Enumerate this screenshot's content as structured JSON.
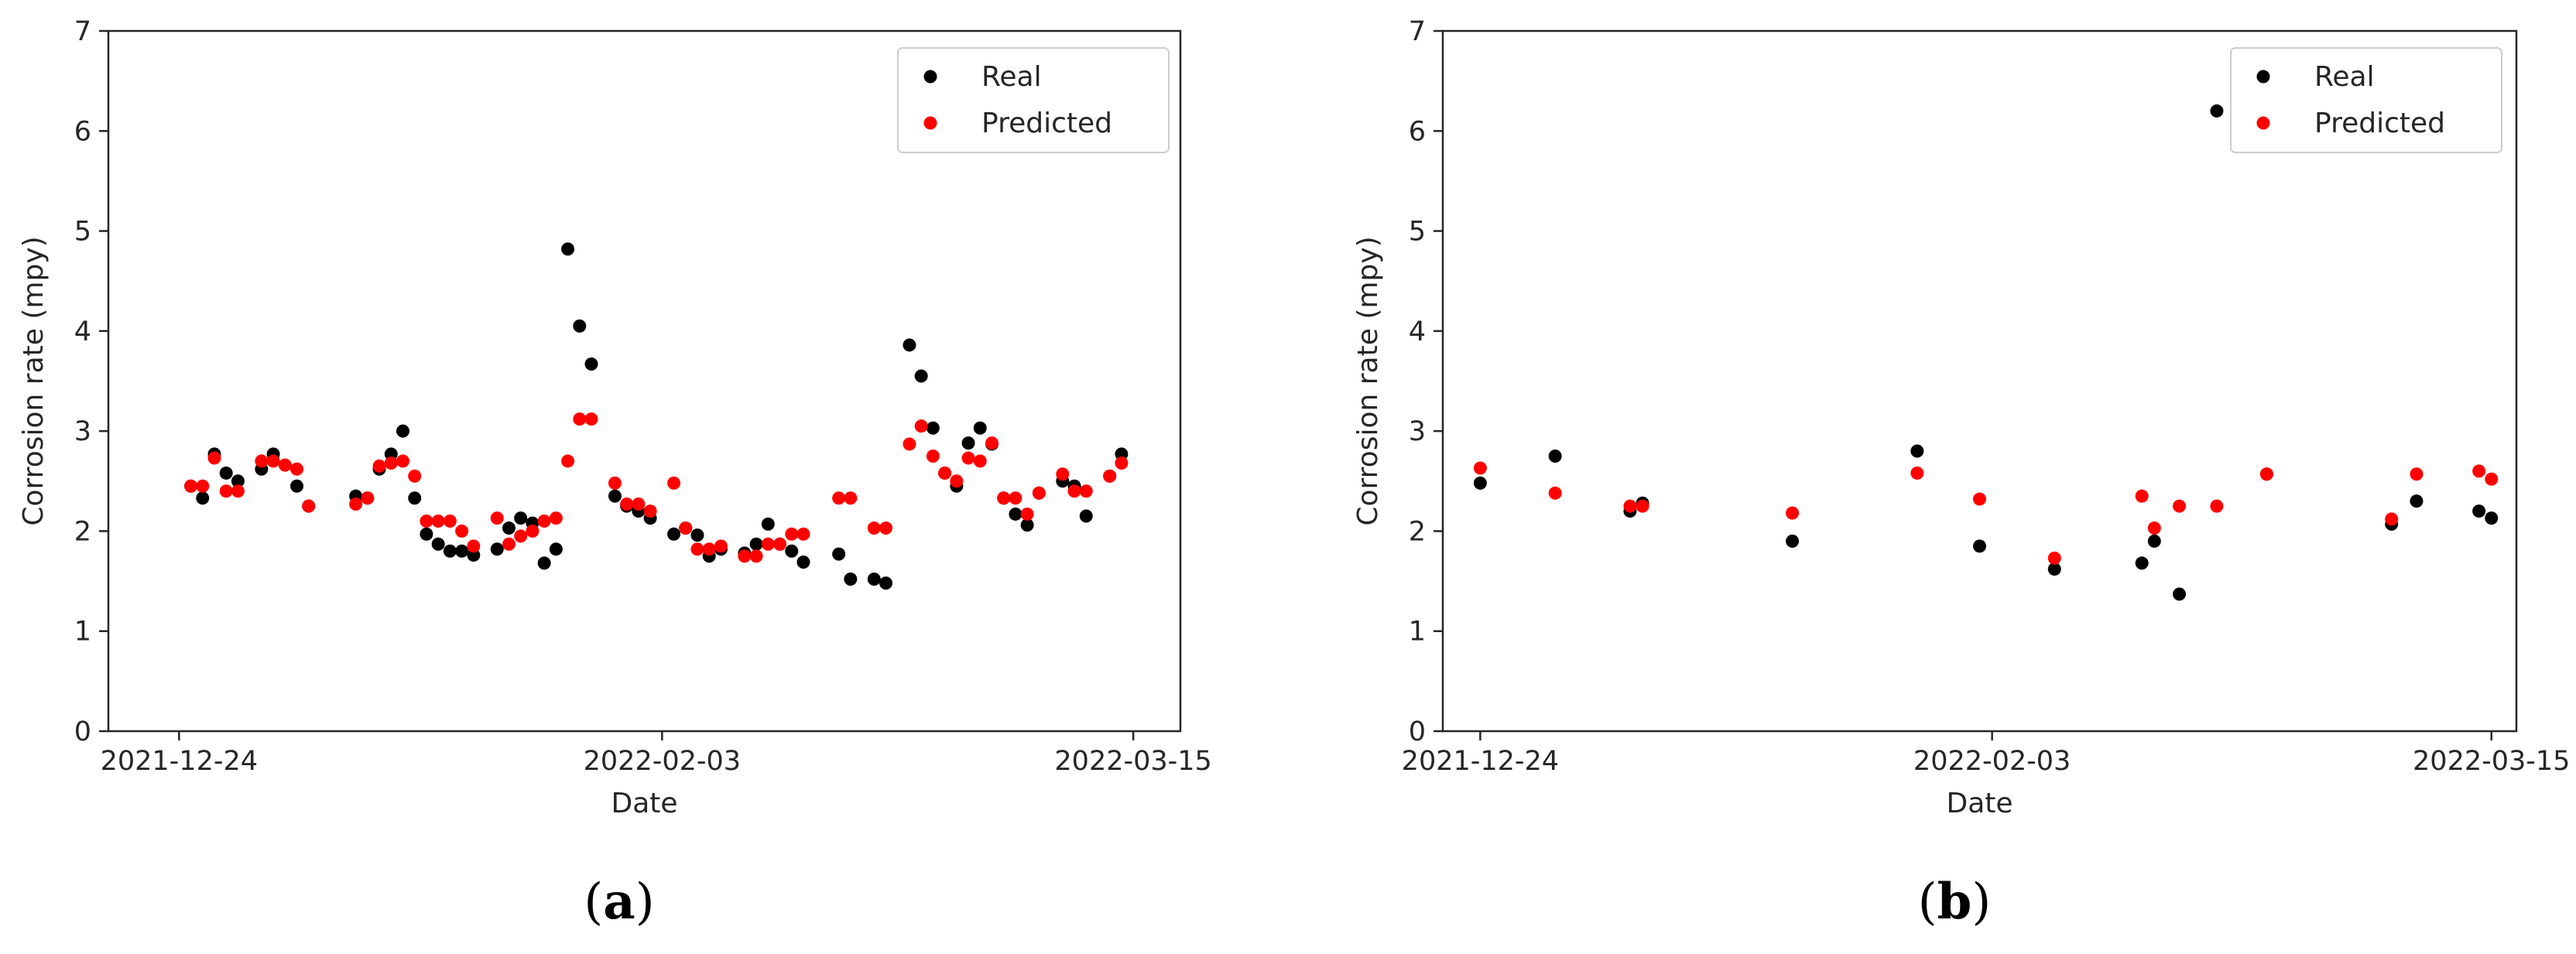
{
  "colors": {
    "real": "#000000",
    "predicted": "#ff0000",
    "axes": "#262626"
  },
  "chart_data": [
    {
      "type": "scatter",
      "panel_label": "(a)",
      "panel_letter": "a",
      "xlabel": "Date",
      "ylabel": "Corrosion rate (mpy)",
      "xlim": [
        "2021-12-18",
        "2022-03-19"
      ],
      "ylim": [
        0,
        7
      ],
      "x_ticks": [
        "2021-12-24",
        "2022-02-03",
        "2022-03-15"
      ],
      "y_ticks": [
        0,
        1,
        2,
        3,
        4,
        5,
        6,
        7
      ],
      "grid": false,
      "legend_position": "top-right",
      "series": [
        {
          "name": "Real",
          "color": "#000000",
          "points": [
            [
              "2021-12-25",
              2.45
            ],
            [
              "2021-12-26",
              2.33
            ],
            [
              "2021-12-27",
              2.77
            ],
            [
              "2021-12-28",
              2.58
            ],
            [
              "2021-12-29",
              2.5
            ],
            [
              "2021-12-31",
              2.62
            ],
            [
              "2022-01-01",
              2.77
            ],
            [
              "2022-01-03",
              2.45
            ],
            [
              "2022-01-04",
              2.25
            ],
            [
              "2022-01-08",
              2.35
            ],
            [
              "2022-01-09",
              2.33
            ],
            [
              "2022-01-10",
              2.62
            ],
            [
              "2022-01-11",
              2.77
            ],
            [
              "2022-01-12",
              3.0
            ],
            [
              "2022-01-13",
              2.33
            ],
            [
              "2022-01-14",
              1.97
            ],
            [
              "2022-01-15",
              1.87
            ],
            [
              "2022-01-16",
              1.8
            ],
            [
              "2022-01-17",
              1.8
            ],
            [
              "2022-01-18",
              1.76
            ],
            [
              "2022-01-20",
              1.82
            ],
            [
              "2022-01-21",
              2.03
            ],
            [
              "2022-01-22",
              2.13
            ],
            [
              "2022-01-23",
              2.08
            ],
            [
              "2022-01-24",
              1.68
            ],
            [
              "2022-01-25",
              1.82
            ],
            [
              "2022-01-26",
              4.82
            ],
            [
              "2022-01-27",
              4.05
            ],
            [
              "2022-01-28",
              3.67
            ],
            [
              "2022-01-30",
              2.35
            ],
            [
              "2022-01-31",
              2.25
            ],
            [
              "2022-02-01",
              2.2
            ],
            [
              "2022-02-02",
              2.13
            ],
            [
              "2022-02-04",
              1.97
            ],
            [
              "2022-02-05",
              2.03
            ],
            [
              "2022-02-06",
              1.96
            ],
            [
              "2022-02-07",
              1.75
            ],
            [
              "2022-02-08",
              1.82
            ],
            [
              "2022-02-10",
              1.78
            ],
            [
              "2022-02-11",
              1.87
            ],
            [
              "2022-02-12",
              2.07
            ],
            [
              "2022-02-13",
              1.87
            ],
            [
              "2022-02-14",
              1.8
            ],
            [
              "2022-02-15",
              1.69
            ],
            [
              "2022-02-18",
              1.77
            ],
            [
              "2022-02-19",
              1.52
            ],
            [
              "2022-02-21",
              1.52
            ],
            [
              "2022-02-22",
              1.48
            ],
            [
              "2022-02-24",
              3.86
            ],
            [
              "2022-02-25",
              3.55
            ],
            [
              "2022-02-26",
              3.03
            ],
            [
              "2022-02-27",
              2.58
            ],
            [
              "2022-02-28",
              2.45
            ],
            [
              "2022-03-01",
              2.88
            ],
            [
              "2022-03-02",
              3.03
            ],
            [
              "2022-03-03",
              2.87
            ],
            [
              "2022-03-04",
              2.33
            ],
            [
              "2022-03-05",
              2.17
            ],
            [
              "2022-03-06",
              2.06
            ],
            [
              "2022-03-07",
              2.38
            ],
            [
              "2022-03-09",
              2.5
            ],
            [
              "2022-03-10",
              2.45
            ],
            [
              "2022-03-11",
              2.15
            ],
            [
              "2022-03-13",
              2.55
            ],
            [
              "2022-03-14",
              2.77
            ]
          ]
        },
        {
          "name": "Predicted",
          "color": "#ff0000",
          "points": [
            [
              "2021-12-25",
              2.45
            ],
            [
              "2021-12-26",
              2.45
            ],
            [
              "2021-12-27",
              2.73
            ],
            [
              "2021-12-28",
              2.4
            ],
            [
              "2021-12-29",
              2.4
            ],
            [
              "2021-12-31",
              2.7
            ],
            [
              "2022-01-01",
              2.7
            ],
            [
              "2022-01-02",
              2.66
            ],
            [
              "2022-01-03",
              2.62
            ],
            [
              "2022-01-04",
              2.25
            ],
            [
              "2022-01-08",
              2.27
            ],
            [
              "2022-01-09",
              2.33
            ],
            [
              "2022-01-10",
              2.65
            ],
            [
              "2022-01-11",
              2.68
            ],
            [
              "2022-01-12",
              2.7
            ],
            [
              "2022-01-13",
              2.55
            ],
            [
              "2022-01-14",
              2.1
            ],
            [
              "2022-01-15",
              2.1
            ],
            [
              "2022-01-16",
              2.1
            ],
            [
              "2022-01-17",
              2.0
            ],
            [
              "2022-01-18",
              1.85
            ],
            [
              "2022-01-20",
              2.13
            ],
            [
              "2022-01-21",
              1.87
            ],
            [
              "2022-01-22",
              1.95
            ],
            [
              "2022-01-23",
              2.0
            ],
            [
              "2022-01-24",
              2.1
            ],
            [
              "2022-01-25",
              2.13
            ],
            [
              "2022-01-26",
              2.7
            ],
            [
              "2022-01-27",
              3.12
            ],
            [
              "2022-01-28",
              3.12
            ],
            [
              "2022-01-30",
              2.48
            ],
            [
              "2022-01-31",
              2.27
            ],
            [
              "2022-02-01",
              2.27
            ],
            [
              "2022-02-02",
              2.2
            ],
            [
              "2022-02-04",
              2.48
            ],
            [
              "2022-02-05",
              2.03
            ],
            [
              "2022-02-06",
              1.82
            ],
            [
              "2022-02-07",
              1.82
            ],
            [
              "2022-02-08",
              1.85
            ],
            [
              "2022-02-10",
              1.75
            ],
            [
              "2022-02-11",
              1.75
            ],
            [
              "2022-02-12",
              1.87
            ],
            [
              "2022-02-13",
              1.87
            ],
            [
              "2022-02-14",
              1.97
            ],
            [
              "2022-02-15",
              1.97
            ],
            [
              "2022-02-18",
              2.33
            ],
            [
              "2022-02-19",
              2.33
            ],
            [
              "2022-02-21",
              2.03
            ],
            [
              "2022-02-22",
              2.03
            ],
            [
              "2022-02-24",
              2.87
            ],
            [
              "2022-02-25",
              3.05
            ],
            [
              "2022-02-26",
              2.75
            ],
            [
              "2022-02-27",
              2.58
            ],
            [
              "2022-02-28",
              2.5
            ],
            [
              "2022-03-01",
              2.73
            ],
            [
              "2022-03-02",
              2.7
            ],
            [
              "2022-03-03",
              2.88
            ],
            [
              "2022-03-04",
              2.33
            ],
            [
              "2022-03-05",
              2.33
            ],
            [
              "2022-03-06",
              2.17
            ],
            [
              "2022-03-07",
              2.38
            ],
            [
              "2022-03-09",
              2.57
            ],
            [
              "2022-03-10",
              2.4
            ],
            [
              "2022-03-11",
              2.4
            ],
            [
              "2022-03-13",
              2.55
            ],
            [
              "2022-03-14",
              2.68
            ]
          ]
        }
      ]
    },
    {
      "type": "scatter",
      "panel_label": "(b)",
      "panel_letter": "b",
      "xlabel": "Date",
      "ylabel": "Corrosion rate (mpy)",
      "xlim": [
        "2021-12-21",
        "2022-03-17"
      ],
      "ylim": [
        0,
        7
      ],
      "x_ticks": [
        "2021-12-24",
        "2022-02-03",
        "2022-03-15"
      ],
      "y_ticks": [
        0,
        1,
        2,
        3,
        4,
        5,
        6,
        7
      ],
      "grid": false,
      "legend_position": "top-right",
      "series": [
        {
          "name": "Real",
          "color": "#000000",
          "points": [
            [
              "2021-12-24",
              2.48
            ],
            [
              "2021-12-30",
              2.75
            ],
            [
              "2022-01-05",
              2.2
            ],
            [
              "2022-01-06",
              2.28
            ],
            [
              "2022-01-18",
              1.9
            ],
            [
              "2022-01-28",
              2.8
            ],
            [
              "2022-02-02",
              1.85
            ],
            [
              "2022-02-08",
              1.62
            ],
            [
              "2022-02-15",
              1.68
            ],
            [
              "2022-02-16",
              1.9
            ],
            [
              "2022-02-18",
              1.37
            ],
            [
              "2022-02-21",
              6.2
            ],
            [
              "2022-02-25",
              2.57
            ],
            [
              "2022-03-07",
              2.07
            ],
            [
              "2022-03-09",
              2.3
            ],
            [
              "2022-03-14",
              2.2
            ],
            [
              "2022-03-15",
              2.13
            ]
          ]
        },
        {
          "name": "Predicted",
          "color": "#ff0000",
          "points": [
            [
              "2021-12-24",
              2.63
            ],
            [
              "2021-12-30",
              2.38
            ],
            [
              "2022-01-05",
              2.25
            ],
            [
              "2022-01-06",
              2.25
            ],
            [
              "2022-01-18",
              2.18
            ],
            [
              "2022-01-28",
              2.58
            ],
            [
              "2022-02-02",
              2.32
            ],
            [
              "2022-02-08",
              1.73
            ],
            [
              "2022-02-15",
              2.35
            ],
            [
              "2022-02-16",
              2.03
            ],
            [
              "2022-02-18",
              2.25
            ],
            [
              "2022-02-21",
              2.25
            ],
            [
              "2022-02-25",
              2.57
            ],
            [
              "2022-03-07",
              2.12
            ],
            [
              "2022-03-09",
              2.57
            ],
            [
              "2022-03-14",
              2.6
            ],
            [
              "2022-03-15",
              2.52
            ]
          ]
        }
      ]
    }
  ]
}
